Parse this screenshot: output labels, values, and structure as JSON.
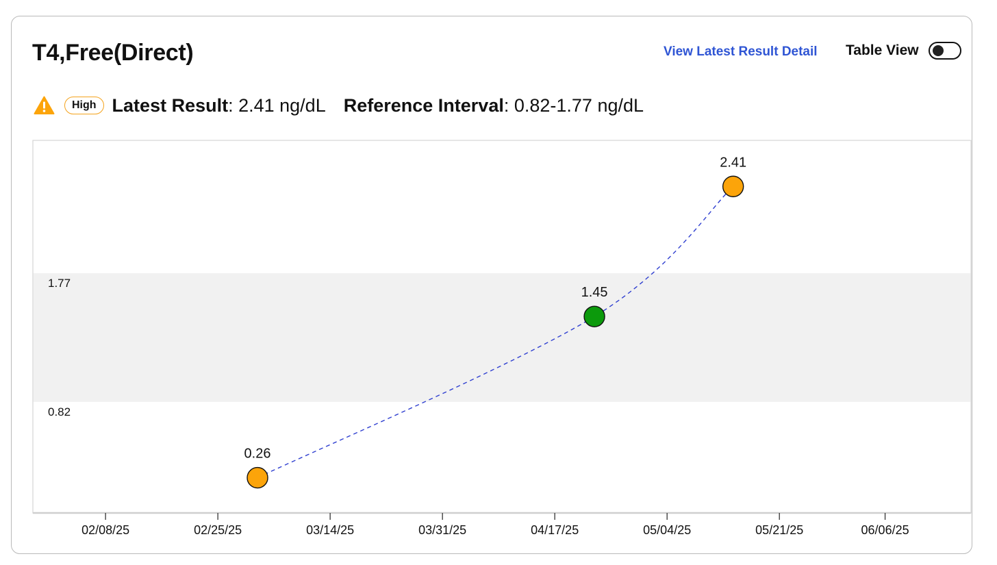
{
  "header": {
    "title": "T4,Free(Direct)",
    "detail_link": "View Latest Result Detail",
    "table_view_label": "Table View",
    "table_view_on": false
  },
  "summary": {
    "flag": "High",
    "latest_label": "Latest Result",
    "latest_value": ": 2.41 ng/dL",
    "reference_label": "Reference Interval",
    "reference_value": ": 0.82-1.77 ng/dL"
  },
  "icons": {
    "warning": "warning-triangle-icon",
    "toggle": "toggle-switch-icon"
  },
  "colors": {
    "accent_link": "#2f55d4",
    "high": "#fca40a",
    "normal": "#0c9a0c",
    "trend_line": "#2f3fd0",
    "reference_band": "#f1f1f1"
  },
  "chart_data": {
    "type": "scatter",
    "title": "",
    "xlabel": "",
    "ylabel": "",
    "x_tick_labels": [
      "02/08/25",
      "02/25/25",
      "03/14/25",
      "03/31/25",
      "04/17/25",
      "05/04/25",
      "05/21/25",
      "06/06/25"
    ],
    "x_ticks": [
      "2025-02-08",
      "2025-02-25",
      "2025-03-14",
      "2025-03-31",
      "2025-04-17",
      "2025-05-04",
      "2025-05-21",
      "2025-06-06"
    ],
    "xlim": [
      "2025-01-28",
      "2025-06-19"
    ],
    "ylim": [
      0.0,
      2.75
    ],
    "reference_interval": {
      "low": 0.82,
      "high": 1.77,
      "low_label": "0.82",
      "high_label": "1.77"
    },
    "connector": "dashed smooth line",
    "grid": false,
    "series": [
      {
        "points": [
          {
            "x": "2025-03-03",
            "y": 0.26,
            "label": "0.26",
            "status": "high"
          },
          {
            "x": "2025-04-23",
            "y": 1.45,
            "label": "1.45",
            "status": "normal"
          },
          {
            "x": "2025-05-14",
            "y": 2.41,
            "label": "2.41",
            "status": "high"
          }
        ]
      }
    ]
  }
}
